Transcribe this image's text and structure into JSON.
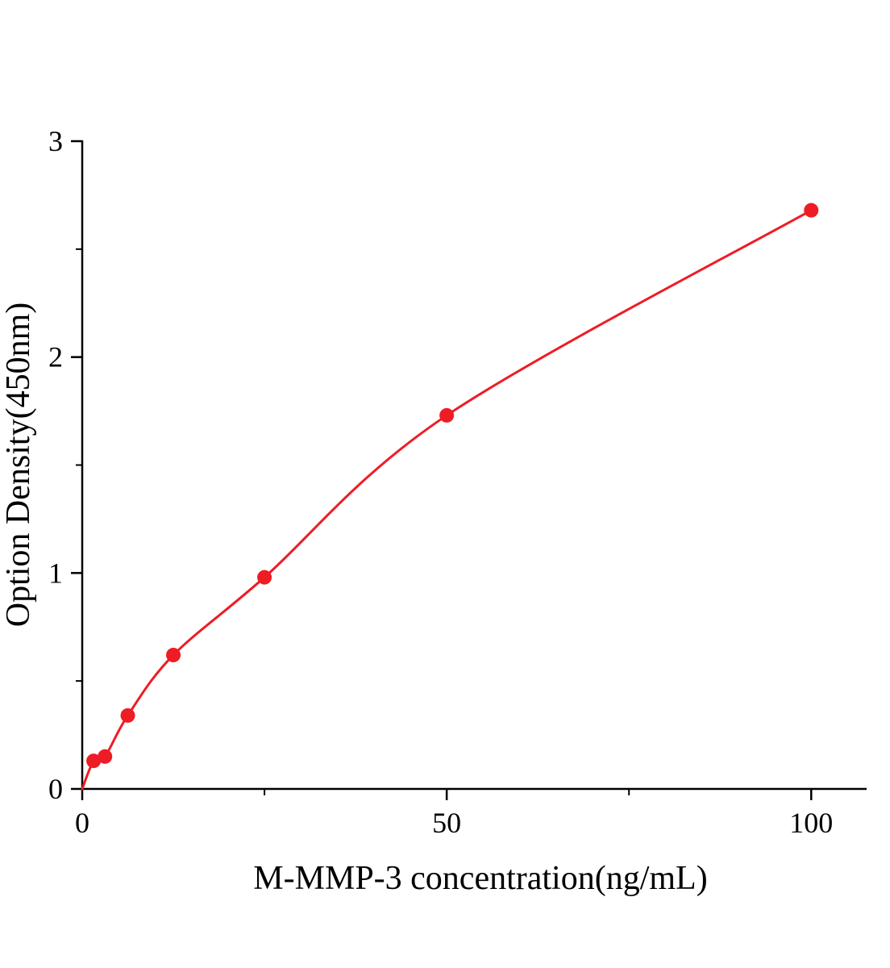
{
  "chart_data": {
    "type": "scatter",
    "title": "",
    "xlabel": "M-MMP-3 concentration(ng/mL)",
    "ylabel": "Option Density(450nm)",
    "x": [
      1.56,
      3.12,
      6.25,
      12.5,
      25,
      50,
      100
    ],
    "y": [
      0.13,
      0.15,
      0.34,
      0.62,
      0.98,
      1.73,
      2.68
    ],
    "xlim": [
      0,
      107.6
    ],
    "ylim": [
      0,
      3
    ],
    "x_major_ticks": {
      "values": [
        0,
        50,
        100
      ],
      "labels": [
        "0",
        "50",
        "100"
      ]
    },
    "x_minor_ticks": [
      25,
      75
    ],
    "y_major_ticks": {
      "values": [
        0,
        1,
        2,
        3
      ],
      "labels": [
        "0",
        "1",
        "2",
        "3"
      ]
    },
    "y_minor_ticks": [
      0.5,
      1.5,
      2.5
    ],
    "curve_through_origin": true,
    "curve_color": "#ee1c25",
    "point_color": "#ee1c25",
    "point_radius": 9,
    "axis_color": "#000000",
    "grid": false,
    "legend": null
  }
}
